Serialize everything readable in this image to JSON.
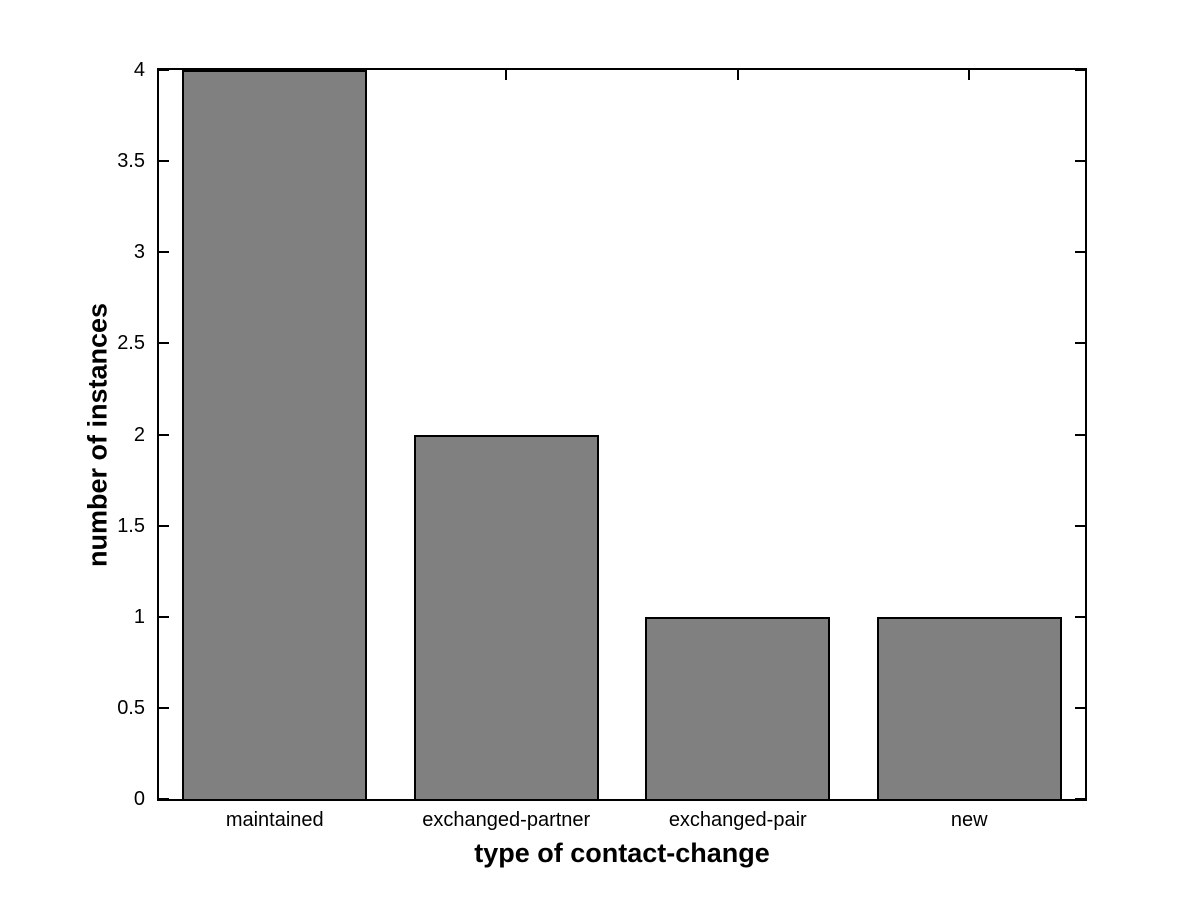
{
  "figure": {
    "background_color": "#ffffff"
  },
  "chart_data": {
    "type": "bar",
    "title": "",
    "categories": [
      "maintained",
      "exchanged-partner",
      "exchanged-pair",
      "new"
    ],
    "values": [
      4,
      2,
      1,
      1
    ],
    "xlabel": "type of contact-change",
    "ylabel": "number of instances",
    "ylim": [
      0,
      4
    ],
    "yticks": [
      0,
      0.5,
      1,
      1.5,
      2,
      2.5,
      3,
      3.5,
      4
    ],
    "ytick_labels": [
      "0",
      "0.5",
      "1",
      "1.5",
      "2",
      "2.5",
      "3",
      "3.5",
      "4"
    ],
    "bar_color": "#808080",
    "bar_edge_color": "#000000",
    "axis_color": "#000000",
    "bar_width_fraction": 0.8,
    "grid": false,
    "legend": null
  }
}
